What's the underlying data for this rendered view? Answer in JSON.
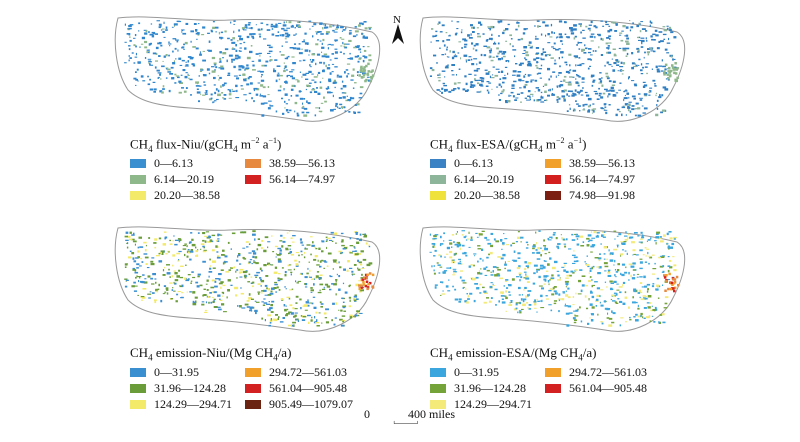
{
  "panels": [
    {
      "id": "niu-flux",
      "title_main": "CH",
      "title_sub": "4",
      "title_rest": " flux-Niu/(gCH",
      "title_sub2": "4",
      "title_rest2": " m",
      "title_sup": "−2",
      "title_rest3": " a",
      "title_sup2": "−1",
      "title_end": ")",
      "legend": [
        {
          "label": "0—6.13",
          "color": "#3a8fd1"
        },
        {
          "label": "6.14—20.19",
          "color": "#8fb88a"
        },
        {
          "label": "20.20—38.58",
          "color": "#f3ea6a"
        },
        {
          "label": "38.59—56.13",
          "color": "#e7893f"
        },
        {
          "label": "56.14—74.97",
          "color": "#d32020"
        }
      ]
    },
    {
      "id": "esa-flux",
      "title_main": "CH",
      "title_sub": "4",
      "title_rest": " flux-ESA/(gCH",
      "title_sub2": "4",
      "title_rest2": " m",
      "title_sup": "−2",
      "title_rest3": " a",
      "title_sup2": "−1",
      "title_end": ")",
      "legend": [
        {
          "label": "0—6.13",
          "color": "#3a82c4"
        },
        {
          "label": "6.14—20.19",
          "color": "#8db59a"
        },
        {
          "label": "20.20—38.58",
          "color": "#efe23a"
        },
        {
          "label": "38.59—56.13",
          "color": "#f2a02c"
        },
        {
          "label": "56.14—74.97",
          "color": "#d41f1f"
        },
        {
          "label": "74.98—91.98",
          "color": "#7b1f12"
        }
      ]
    },
    {
      "id": "niu-emission",
      "title_main": "CH",
      "title_sub": "4",
      "title_rest": " emission-Niu/(Mg CH",
      "title_sub2": "4",
      "title_end": "/a)",
      "legend": [
        {
          "label": "0—31.95",
          "color": "#3a8fd1"
        },
        {
          "label": "31.96—124.28",
          "color": "#6a9d3a"
        },
        {
          "label": "124.29—294.71",
          "color": "#f3ea6a"
        },
        {
          "label": "294.72—561.03",
          "color": "#f2a02c"
        },
        {
          "label": "561.04—905.48",
          "color": "#d32020"
        },
        {
          "label": "905.49—1079.07",
          "color": "#6b2312"
        }
      ]
    },
    {
      "id": "esa-emission",
      "title_main": "CH",
      "title_sub": "4",
      "title_rest": " emission-ESA/(Mg CH",
      "title_sub2": "4",
      "title_end": "/a)",
      "legend": [
        {
          "label": "0—31.95",
          "color": "#3aa6dd"
        },
        {
          "label": "31.96—124.28",
          "color": "#74a33a"
        },
        {
          "label": "124.29—294.71",
          "color": "#f3ea7a"
        },
        {
          "label": "294.72—561.03",
          "color": "#f2a02c"
        },
        {
          "label": "561.04—905.48",
          "color": "#d32020"
        }
      ]
    }
  ],
  "north_arrow": {
    "label": "N"
  },
  "scale_bar": {
    "start": "0",
    "end": "400 miles"
  },
  "colors": {
    "outline": "#999999",
    "primary_pixel": "#2f86cc"
  }
}
